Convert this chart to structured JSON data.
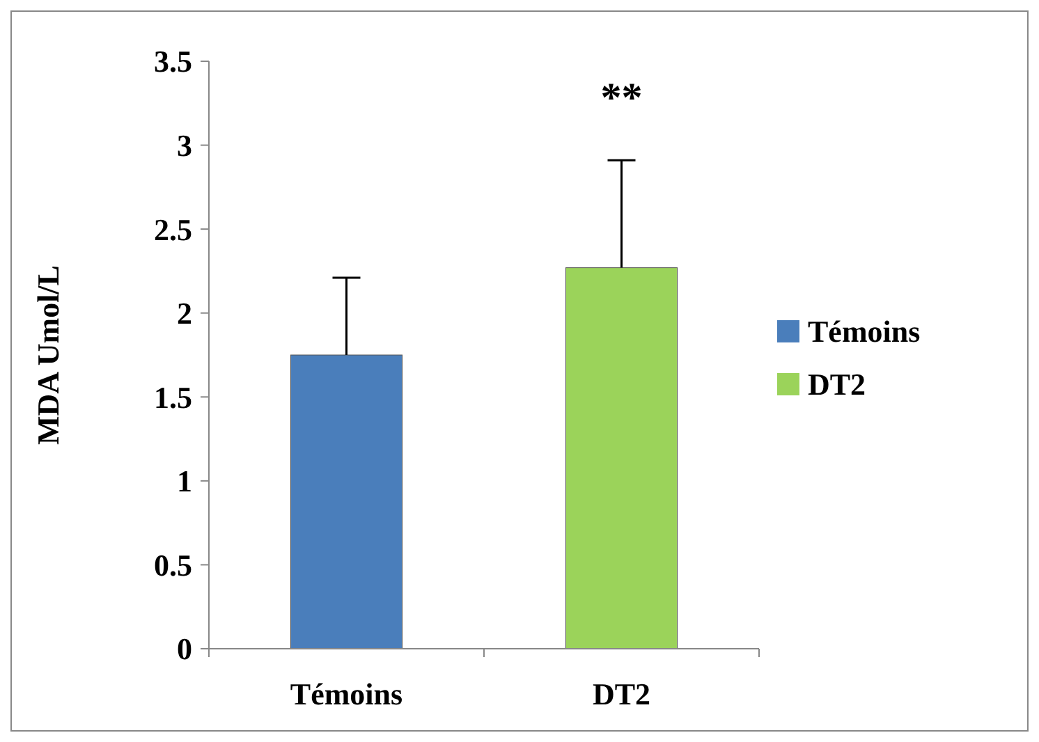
{
  "chart_data": {
    "type": "bar",
    "ylabel": "MDA Umol/L",
    "categories": [
      "Témoins",
      "DT2"
    ],
    "series": [
      {
        "name": "Témoins",
        "color": "#4a7ebb",
        "values": [
          1.75,
          null
        ],
        "errors": [
          0.46,
          null
        ]
      },
      {
        "name": "DT2",
        "color": "#9bd35a",
        "values": [
          null,
          2.27
        ],
        "errors": [
          null,
          0.64
        ]
      }
    ],
    "ylim": [
      0,
      3.5
    ],
    "yticks": [
      0,
      0.5,
      1,
      1.5,
      2,
      2.5,
      3,
      3.5
    ],
    "grid": false,
    "legend": "right",
    "annotations": [
      "**"
    ]
  }
}
